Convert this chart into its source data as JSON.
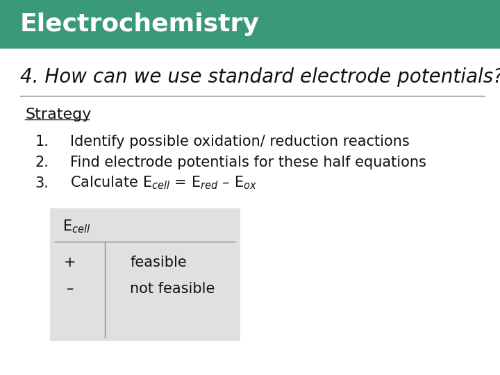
{
  "title": "Electrochemistry",
  "title_bg_color": "#3a9a78",
  "title_text_color": "#ffffff",
  "title_font_size": 26,
  "slide_bg_color": "#ffffff",
  "question": "4. How can we use standard electrode potentials?",
  "question_font_size": 20,
  "strategy_label": "Strategy",
  "strategy_font_size": 16,
  "items": [
    "Identify possible oxidation/ reduction reactions",
    "Find electrode potentials for these half equations",
    "Calculate E$_{cell}$ = E$_{red}$ – E$_{ox}$"
  ],
  "item_font_size": 15,
  "table_bg_color": "#e0e0e0",
  "table_header": "E$_{cell}$",
  "table_rows": [
    [
      "+",
      "feasible"
    ],
    [
      "–",
      "not feasible"
    ]
  ],
  "table_font_size": 15
}
